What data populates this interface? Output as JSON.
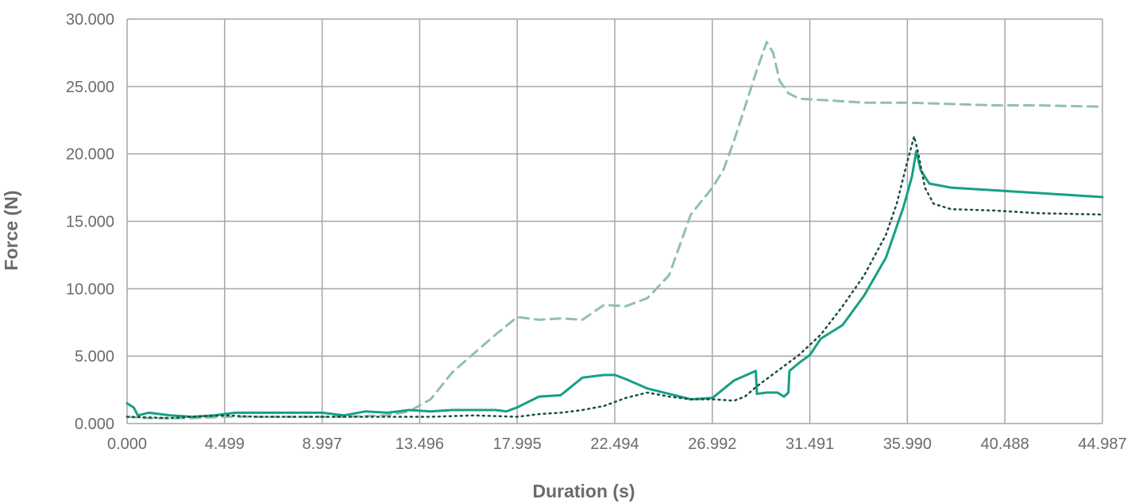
{
  "chart_data": {
    "type": "line",
    "title": "",
    "xlabel": "Duration (s)",
    "ylabel": "Force (N)",
    "xlim": [
      0,
      44.987
    ],
    "ylim": [
      0,
      30
    ],
    "x_ticks": [
      "0.000",
      "4.499",
      "8.997",
      "13.496",
      "17.995",
      "22.494",
      "26.992",
      "31.491",
      "35.990",
      "40.488",
      "44.987"
    ],
    "y_ticks": [
      "0.000",
      "5.000",
      "10.000",
      "15.000",
      "20.000",
      "25.000",
      "30.000"
    ],
    "grid": true,
    "legend": "none",
    "series": [
      {
        "style": "dashed",
        "color": "#8fc1ad",
        "x": [
          0,
          1,
          2,
          3,
          4.5,
          6,
          8,
          10,
          12,
          13,
          14,
          15,
          16,
          17,
          18,
          19,
          20,
          21,
          22,
          23,
          24,
          25,
          26,
          27,
          27.5,
          28,
          28.5,
          29,
          29.5,
          29.8,
          30.1,
          30.5,
          31,
          32,
          33,
          34,
          36,
          38,
          40,
          42,
          44.987
        ],
        "y": [
          0.5,
          0.4,
          0.4,
          0.4,
          0.5,
          0.5,
          0.5,
          0.5,
          0.6,
          0.9,
          1.8,
          3.8,
          5.2,
          6.6,
          7.9,
          7.7,
          7.8,
          7.7,
          8.8,
          8.7,
          9.3,
          11,
          15.5,
          17.5,
          18.8,
          21,
          23.5,
          26,
          28.3,
          27.5,
          25.4,
          24.5,
          24.1,
          24,
          23.9,
          23.8,
          23.8,
          23.7,
          23.6,
          23.6,
          23.5
        ]
      },
      {
        "style": "solid",
        "color": "#16a085",
        "x": [
          0,
          0.3,
          0.5,
          1,
          2,
          3,
          4,
          5,
          6,
          7,
          9,
          10,
          11,
          12,
          13,
          14,
          15,
          16,
          17,
          17.5,
          18,
          19,
          20,
          21,
          22,
          22.5,
          23,
          24,
          25,
          26,
          27,
          28,
          29,
          29.05,
          29.5,
          30,
          30.3,
          30.5,
          30.55,
          31,
          31.5,
          32,
          33,
          34,
          35,
          35.8,
          36.2,
          36.4,
          36.6,
          37,
          38,
          40,
          42,
          44.987
        ],
        "y": [
          1.5,
          1.2,
          0.6,
          0.8,
          0.6,
          0.5,
          0.6,
          0.8,
          0.8,
          0.8,
          0.8,
          0.6,
          0.9,
          0.8,
          1,
          0.9,
          1,
          1,
          1,
          0.9,
          1.2,
          2,
          2.1,
          3.4,
          3.6,
          3.6,
          3.3,
          2.6,
          2.2,
          1.8,
          1.9,
          3.2,
          3.9,
          2.2,
          2.3,
          2.3,
          2,
          2.3,
          3.9,
          4.5,
          5.1,
          6.3,
          7.3,
          9.5,
          12.3,
          16,
          18.3,
          20.2,
          18.8,
          17.8,
          17.5,
          17.3,
          17.1,
          16.8
        ]
      },
      {
        "style": "dotted",
        "color": "#1f4f44",
        "x": [
          0,
          2,
          3,
          4.499,
          6,
          8,
          10,
          12,
          14,
          16,
          18,
          19,
          20,
          21,
          22,
          23,
          24,
          25,
          26,
          27,
          28,
          28.5,
          29,
          30,
          31,
          32,
          33,
          34,
          35,
          35.5,
          36,
          36.3,
          36.5,
          36.8,
          37.2,
          38,
          40,
          42,
          44.987
        ],
        "y": [
          0.5,
          0.4,
          0.5,
          0.6,
          0.5,
          0.5,
          0.5,
          0.5,
          0.5,
          0.6,
          0.5,
          0.7,
          0.8,
          1,
          1.3,
          1.9,
          2.3,
          2,
          1.8,
          1.8,
          1.7,
          2,
          2.7,
          3.9,
          5.1,
          6.6,
          8.7,
          11,
          14,
          16.3,
          19.5,
          21.3,
          20,
          17.5,
          16.3,
          15.9,
          15.8,
          15.6,
          15.5
        ]
      }
    ]
  }
}
